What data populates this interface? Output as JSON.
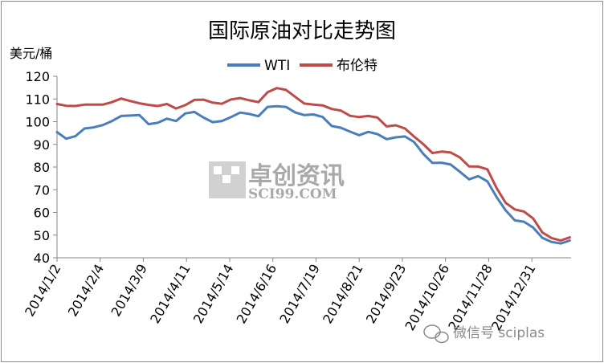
{
  "chart_data": {
    "type": "line",
    "title": "国际原油对比走势图",
    "ylabel": "美元/桶",
    "xlabel": "",
    "ylim": [
      40,
      120
    ],
    "yticks": [
      40,
      50,
      60,
      70,
      80,
      90,
      100,
      110,
      120
    ],
    "xlim": [
      "2014-01-02",
      "2015-01-30"
    ],
    "xtick_dates": [
      "2014-01-02",
      "2014-02-04",
      "2014-03-09",
      "2014-04-11",
      "2014-05-14",
      "2014-06-16",
      "2014-07-19",
      "2014-08-21",
      "2014-09-23",
      "2014-10-26",
      "2014-11-28",
      "2014-12-31"
    ],
    "xtick_labels": [
      "2014/1/2",
      "2014/2/4",
      "2014/3/9",
      "2014/4/11",
      "2014/5/14",
      "2014/6/16",
      "2014/7/19",
      "2014/8/21",
      "2014/9/23",
      "2014/10/26",
      "2014/11/28",
      "2014/12/31"
    ],
    "legend_position": "top-center",
    "grid": false,
    "series": [
      {
        "name": "WTI",
        "color": "#4a7ebb",
        "dates": [
          "2014-01-02",
          "2014-01-09",
          "2014-01-16",
          "2014-01-23",
          "2014-01-30",
          "2014-02-06",
          "2014-02-13",
          "2014-02-20",
          "2014-02-27",
          "2014-03-06",
          "2014-03-13",
          "2014-03-20",
          "2014-03-27",
          "2014-04-03",
          "2014-04-10",
          "2014-04-17",
          "2014-04-24",
          "2014-05-01",
          "2014-05-08",
          "2014-05-15",
          "2014-05-22",
          "2014-05-29",
          "2014-06-05",
          "2014-06-12",
          "2014-06-19",
          "2014-06-26",
          "2014-07-03",
          "2014-07-10",
          "2014-07-17",
          "2014-07-24",
          "2014-07-31",
          "2014-08-07",
          "2014-08-14",
          "2014-08-21",
          "2014-08-28",
          "2014-09-04",
          "2014-09-11",
          "2014-09-18",
          "2014-09-25",
          "2014-10-02",
          "2014-10-09",
          "2014-10-16",
          "2014-10-23",
          "2014-10-30",
          "2014-11-06",
          "2014-11-13",
          "2014-11-20",
          "2014-11-27",
          "2014-12-04",
          "2014-12-11",
          "2014-12-18",
          "2014-12-25",
          "2015-01-01",
          "2015-01-08",
          "2015-01-15",
          "2015-01-22",
          "2015-01-29"
        ],
        "values": [
          95.4,
          92.5,
          93.6,
          97.0,
          97.5,
          98.5,
          100.3,
          102.5,
          102.7,
          102.9,
          98.9,
          99.5,
          101.3,
          100.3,
          103.6,
          104.3,
          101.8,
          99.8,
          100.3,
          102.0,
          104.0,
          103.4,
          102.4,
          106.5,
          106.8,
          106.5,
          104.1,
          102.9,
          103.2,
          102.1,
          98.1,
          97.3,
          95.6,
          94.0,
          95.5,
          94.5,
          92.3,
          93.1,
          93.5,
          91.0,
          85.8,
          81.8,
          81.9,
          81.1,
          77.9,
          74.6,
          76.0,
          73.7,
          66.8,
          60.9,
          56.5,
          55.9,
          53.3,
          48.8,
          47.0,
          46.3,
          47.6
        ]
      },
      {
        "name": "布伦特",
        "color": "#be4b48",
        "dates": [
          "2014-01-02",
          "2014-01-09",
          "2014-01-16",
          "2014-01-23",
          "2014-01-30",
          "2014-02-06",
          "2014-02-13",
          "2014-02-20",
          "2014-02-27",
          "2014-03-06",
          "2014-03-13",
          "2014-03-20",
          "2014-03-27",
          "2014-04-03",
          "2014-04-10",
          "2014-04-17",
          "2014-04-24",
          "2014-05-01",
          "2014-05-08",
          "2014-05-15",
          "2014-05-22",
          "2014-05-29",
          "2014-06-05",
          "2014-06-12",
          "2014-06-19",
          "2014-06-26",
          "2014-07-03",
          "2014-07-10",
          "2014-07-17",
          "2014-07-24",
          "2014-07-31",
          "2014-08-07",
          "2014-08-14",
          "2014-08-21",
          "2014-08-28",
          "2014-09-04",
          "2014-09-11",
          "2014-09-18",
          "2014-09-25",
          "2014-10-02",
          "2014-10-09",
          "2014-10-16",
          "2014-10-23",
          "2014-10-30",
          "2014-11-06",
          "2014-11-13",
          "2014-11-20",
          "2014-11-27",
          "2014-12-04",
          "2014-12-11",
          "2014-12-18",
          "2014-12-25",
          "2015-01-01",
          "2015-01-08",
          "2015-01-15",
          "2015-01-22",
          "2015-01-29"
        ],
        "values": [
          107.8,
          107.0,
          106.9,
          107.5,
          107.5,
          107.5,
          108.6,
          110.2,
          109.1,
          108.1,
          107.4,
          106.9,
          107.8,
          105.8,
          107.3,
          109.6,
          109.7,
          108.4,
          107.9,
          109.8,
          110.4,
          109.4,
          108.6,
          113.0,
          114.8,
          114.0,
          111.0,
          108.0,
          107.5,
          107.2,
          105.6,
          104.9,
          102.6,
          102.0,
          102.5,
          101.8,
          97.9,
          98.4,
          97.0,
          93.4,
          90.1,
          86.2,
          86.8,
          86.4,
          84.2,
          80.3,
          80.2,
          79.0,
          70.8,
          64.2,
          61.3,
          60.4,
          57.3,
          51.2,
          48.7,
          47.6,
          49.0
        ]
      }
    ]
  },
  "watermark": {
    "brand": "卓创资讯",
    "site": "SCI99.COM"
  },
  "wechat": {
    "text": "微信号 sciplas",
    "icon": "wechat-icon"
  }
}
